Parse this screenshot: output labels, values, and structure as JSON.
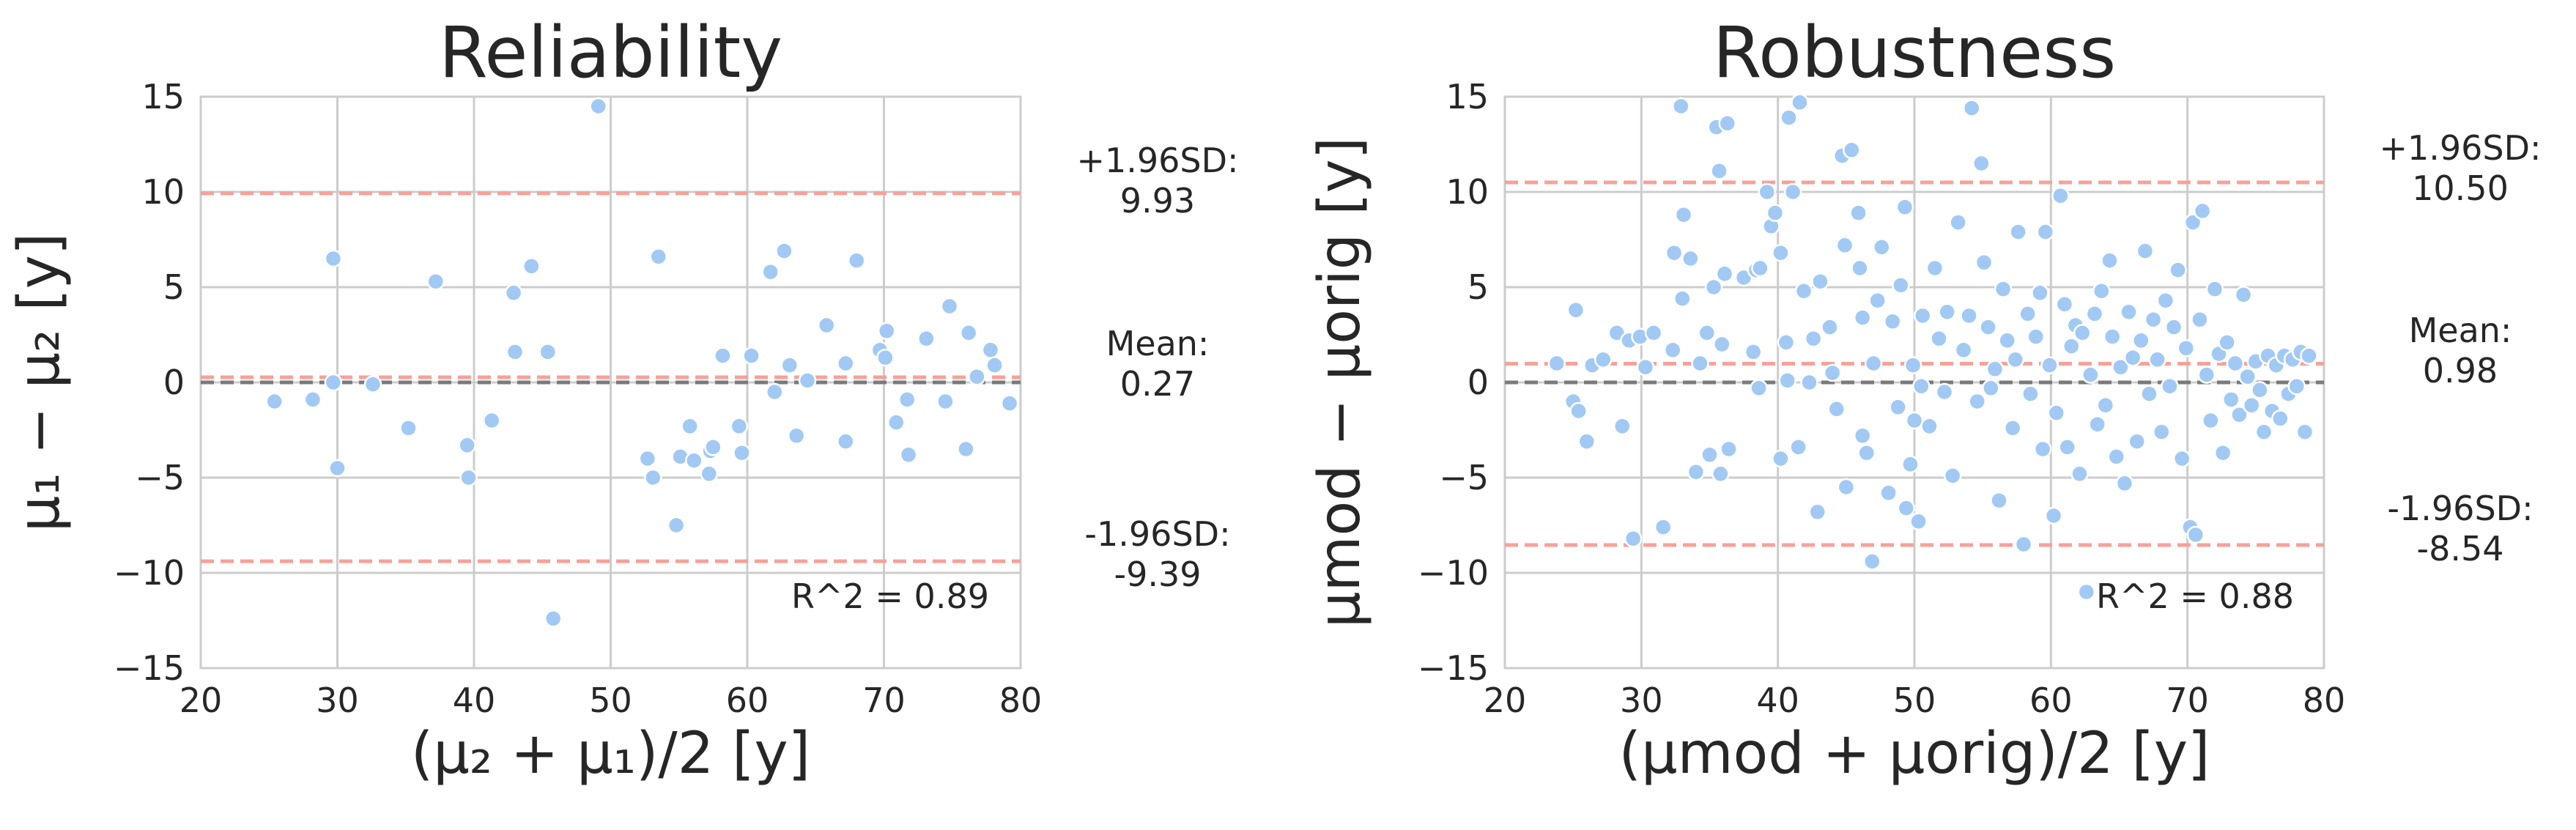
{
  "chart_data": [
    {
      "type": "scatter",
      "title": "Reliability",
      "xlabel": "(μ₂ + μ₁)/2 [y]",
      "ylabel": "μ₁ − μ₂ [y]",
      "xlim": [
        20,
        80
      ],
      "ylim": [
        -15,
        15
      ],
      "xticks": [
        "20",
        "30",
        "40",
        "50",
        "60",
        "70",
        "80"
      ],
      "yticks": [
        "15",
        "10",
        "5",
        "0",
        "−5",
        "−10",
        "−15"
      ],
      "grid": true,
      "annotation": "R^2 = 0.89",
      "stats": {
        "upper_label": "+1.96SD:",
        "upper_value": "9.93",
        "mean_label": "Mean:",
        "mean_value": "0.27",
        "lower_label": "-1.96SD:",
        "lower_value": "-9.39"
      },
      "lines": {
        "upper": 9.93,
        "mean": 0.27,
        "lower": -9.39,
        "zero": 0
      },
      "colors": {
        "points": "#a1c9f4",
        "limits": "#f7a199",
        "zero": "#7a7a7a"
      },
      "points": [
        [
          25.4,
          -1.0
        ],
        [
          28.2,
          -0.9
        ],
        [
          29.7,
          6.5
        ],
        [
          29.7,
          0.0
        ],
        [
          30.0,
          -4.5
        ],
        [
          32.6,
          -0.1
        ],
        [
          35.2,
          -2.4
        ],
        [
          37.2,
          5.3
        ],
        [
          39.5,
          -3.3
        ],
        [
          39.6,
          -5.0
        ],
        [
          41.3,
          -2.0
        ],
        [
          42.9,
          4.7
        ],
        [
          43.0,
          1.6
        ],
        [
          44.2,
          6.1
        ],
        [
          45.4,
          1.6
        ],
        [
          45.8,
          -12.4
        ],
        [
          49.1,
          14.5
        ],
        [
          52.7,
          -4.0
        ],
        [
          53.1,
          -5.0
        ],
        [
          53.5,
          6.6
        ],
        [
          54.8,
          -7.5
        ],
        [
          55.1,
          -3.9
        ],
        [
          55.8,
          -2.3
        ],
        [
          56.1,
          -4.1
        ],
        [
          57.2,
          -4.8
        ],
        [
          57.3,
          -3.6
        ],
        [
          57.5,
          -3.4
        ],
        [
          58.2,
          1.4
        ],
        [
          59.4,
          -2.3
        ],
        [
          59.6,
          -3.7
        ],
        [
          60.3,
          1.4
        ],
        [
          61.7,
          5.8
        ],
        [
          62.0,
          -0.5
        ],
        [
          62.7,
          6.9
        ],
        [
          63.1,
          0.9
        ],
        [
          63.6,
          -2.8
        ],
        [
          64.4,
          0.1
        ],
        [
          65.8,
          3.0
        ],
        [
          67.2,
          1.0
        ],
        [
          67.2,
          -3.1
        ],
        [
          68.0,
          6.4
        ],
        [
          69.7,
          1.7
        ],
        [
          70.1,
          1.3
        ],
        [
          70.2,
          2.7
        ],
        [
          70.9,
          -2.1
        ],
        [
          71.7,
          -0.9
        ],
        [
          71.8,
          -3.8
        ],
        [
          73.1,
          2.3
        ],
        [
          74.5,
          -1.0
        ],
        [
          74.8,
          4.0
        ],
        [
          76.0,
          -3.5
        ],
        [
          76.2,
          2.6
        ],
        [
          76.8,
          0.3
        ],
        [
          77.8,
          1.7
        ],
        [
          78.1,
          0.9
        ],
        [
          79.2,
          -1.1
        ]
      ]
    },
    {
      "type": "scatter",
      "title": "Robustness",
      "xlabel": "(μmod + μorig)/2 [y]",
      "ylabel": "μmod − μorig [y]",
      "xlim": [
        20,
        80
      ],
      "ylim": [
        -15,
        15
      ],
      "xticks": [
        "20",
        "30",
        "40",
        "50",
        "60",
        "70",
        "80"
      ],
      "yticks": [
        "15",
        "10",
        "5",
        "0",
        "−5",
        "−10",
        "−15"
      ],
      "grid": true,
      "annotation": "R^2 = 0.88",
      "stats": {
        "upper_label": "+1.96SD:",
        "upper_value": "10.50",
        "mean_label": "Mean:",
        "mean_value": "0.98",
        "lower_label": "-1.96SD:",
        "lower_value": "-8.54"
      },
      "lines": {
        "upper": 10.5,
        "mean": 0.98,
        "lower": -8.54,
        "zero": 0
      },
      "colors": {
        "points": "#a1c9f4",
        "limits": "#f7a199",
        "zero": "#7a7a7a"
      },
      "points": [
        [
          23.8,
          1.0
        ],
        [
          25.0,
          -1.0
        ],
        [
          25.2,
          3.8
        ],
        [
          25.4,
          -1.5
        ],
        [
          26.0,
          -3.1
        ],
        [
          26.4,
          0.9
        ],
        [
          27.2,
          1.2
        ],
        [
          28.2,
          2.6
        ],
        [
          28.6,
          -2.3
        ],
        [
          29.1,
          2.2
        ],
        [
          29.4,
          -8.2
        ],
        [
          29.9,
          2.4
        ],
        [
          30.3,
          0.8
        ],
        [
          30.9,
          2.6
        ],
        [
          31.6,
          -7.6
        ],
        [
          32.3,
          1.7
        ],
        [
          32.4,
          6.8
        ],
        [
          32.9,
          14.5
        ],
        [
          33.0,
          4.4
        ],
        [
          33.1,
          8.8
        ],
        [
          33.6,
          6.5
        ],
        [
          34.0,
          -4.7
        ],
        [
          34.3,
          1.0
        ],
        [
          34.8,
          2.6
        ],
        [
          35.0,
          -3.8
        ],
        [
          35.3,
          5.0
        ],
        [
          35.5,
          13.4
        ],
        [
          35.7,
          11.1
        ],
        [
          35.8,
          -4.8
        ],
        [
          35.9,
          2.0
        ],
        [
          36.1,
          5.7
        ],
        [
          36.4,
          -3.5
        ],
        [
          36.3,
          13.6
        ],
        [
          37.5,
          5.5
        ],
        [
          38.2,
          1.6
        ],
        [
          38.4,
          5.9
        ],
        [
          38.7,
          6.0
        ],
        [
          38.6,
          -0.3
        ],
        [
          39.2,
          10.0
        ],
        [
          39.5,
          8.2
        ],
        [
          39.8,
          8.9
        ],
        [
          40.2,
          6.8
        ],
        [
          40.2,
          -4.0
        ],
        [
          40.6,
          2.1
        ],
        [
          40.7,
          0.1
        ],
        [
          40.8,
          13.9
        ],
        [
          41.1,
          10.0
        ],
        [
          41.5,
          -3.4
        ],
        [
          41.6,
          14.7
        ],
        [
          41.9,
          4.8
        ],
        [
          42.3,
          0.0
        ],
        [
          42.6,
          2.3
        ],
        [
          42.9,
          -6.8
        ],
        [
          43.1,
          5.3
        ],
        [
          43.8,
          2.9
        ],
        [
          44.0,
          0.5
        ],
        [
          44.3,
          -1.4
        ],
        [
          44.7,
          11.9
        ],
        [
          44.9,
          7.2
        ],
        [
          45.0,
          -5.5
        ],
        [
          45.4,
          12.2
        ],
        [
          45.9,
          8.9
        ],
        [
          46.0,
          6.0
        ],
        [
          46.2,
          3.4
        ],
        [
          46.2,
          -2.8
        ],
        [
          46.5,
          -3.7
        ],
        [
          46.9,
          -9.4
        ],
        [
          47.0,
          1.0
        ],
        [
          47.3,
          4.3
        ],
        [
          47.6,
          7.1
        ],
        [
          48.1,
          -5.8
        ],
        [
          48.4,
          3.2
        ],
        [
          48.8,
          -1.3
        ],
        [
          49.0,
          5.1
        ],
        [
          49.3,
          9.2
        ],
        [
          49.4,
          -6.6
        ],
        [
          49.7,
          -4.3
        ],
        [
          49.9,
          0.9
        ],
        [
          50.0,
          -2.0
        ],
        [
          50.3,
          -7.3
        ],
        [
          50.5,
          -0.2
        ],
        [
          50.6,
          3.5
        ],
        [
          51.1,
          -2.3
        ],
        [
          51.5,
          6.0
        ],
        [
          51.8,
          2.3
        ],
        [
          52.2,
          -0.5
        ],
        [
          52.4,
          3.7
        ],
        [
          52.8,
          -4.9
        ],
        [
          53.2,
          8.4
        ],
        [
          53.6,
          1.7
        ],
        [
          54.0,
          3.5
        ],
        [
          54.2,
          14.4
        ],
        [
          54.6,
          -1.0
        ],
        [
          54.9,
          11.5
        ],
        [
          55.1,
          6.3
        ],
        [
          55.4,
          2.9
        ],
        [
          55.6,
          -0.3
        ],
        [
          55.9,
          0.7
        ],
        [
          56.2,
          -6.2
        ],
        [
          56.5,
          4.9
        ],
        [
          56.8,
          2.2
        ],
        [
          57.2,
          -2.4
        ],
        [
          57.4,
          1.2
        ],
        [
          57.6,
          7.9
        ],
        [
          58.0,
          -8.5
        ],
        [
          58.3,
          3.6
        ],
        [
          58.5,
          -0.6
        ],
        [
          58.9,
          2.4
        ],
        [
          59.2,
          4.7
        ],
        [
          59.4,
          -3.5
        ],
        [
          59.6,
          7.9
        ],
        [
          59.9,
          0.9
        ],
        [
          60.2,
          -7.0
        ],
        [
          60.4,
          -1.6
        ],
        [
          60.7,
          9.8
        ],
        [
          61.0,
          4.1
        ],
        [
          61.2,
          -3.4
        ],
        [
          61.5,
          1.9
        ],
        [
          61.8,
          3.0
        ],
        [
          62.1,
          -4.8
        ],
        [
          62.3,
          2.6
        ],
        [
          62.6,
          -11.0
        ],
        [
          62.9,
          0.4
        ],
        [
          63.2,
          3.6
        ],
        [
          63.4,
          -2.2
        ],
        [
          63.7,
          4.8
        ],
        [
          64.0,
          -1.2
        ],
        [
          64.3,
          6.4
        ],
        [
          64.5,
          2.4
        ],
        [
          64.8,
          -3.9
        ],
        [
          65.1,
          0.8
        ],
        [
          65.4,
          -5.3
        ],
        [
          65.7,
          3.7
        ],
        [
          66.0,
          1.3
        ],
        [
          66.3,
          -3.1
        ],
        [
          66.6,
          2.2
        ],
        [
          66.9,
          6.9
        ],
        [
          67.2,
          -0.6
        ],
        [
          67.5,
          3.3
        ],
        [
          67.8,
          1.2
        ],
        [
          68.1,
          -2.6
        ],
        [
          68.4,
          4.3
        ],
        [
          68.7,
          -0.2
        ],
        [
          69.0,
          2.9
        ],
        [
          69.3,
          5.9
        ],
        [
          69.6,
          -4.0
        ],
        [
          69.9,
          1.8
        ],
        [
          70.2,
          -7.6
        ],
        [
          70.4,
          8.4
        ],
        [
          70.6,
          -8.0
        ],
        [
          70.9,
          3.3
        ],
        [
          71.1,
          9.0
        ],
        [
          71.4,
          0.4
        ],
        [
          71.7,
          -2.0
        ],
        [
          72.0,
          4.9
        ],
        [
          72.3,
          1.5
        ],
        [
          72.6,
          -3.7
        ],
        [
          72.9,
          2.1
        ],
        [
          73.2,
          -0.9
        ],
        [
          73.5,
          1.0
        ],
        [
          73.8,
          -1.7
        ],
        [
          74.1,
          4.6
        ],
        [
          74.4,
          0.3
        ],
        [
          74.7,
          -1.2
        ],
        [
          75.0,
          1.1
        ],
        [
          75.3,
          -0.4
        ],
        [
          75.6,
          -2.6
        ],
        [
          75.9,
          1.4
        ],
        [
          76.2,
          -1.5
        ],
        [
          76.5,
          0.9
        ],
        [
          76.8,
          -1.9
        ],
        [
          77.1,
          1.4
        ],
        [
          77.4,
          -0.6
        ],
        [
          77.7,
          1.2
        ],
        [
          78.0,
          -0.2
        ],
        [
          78.3,
          1.6
        ],
        [
          78.6,
          -2.6
        ],
        [
          78.9,
          1.4
        ]
      ]
    }
  ]
}
